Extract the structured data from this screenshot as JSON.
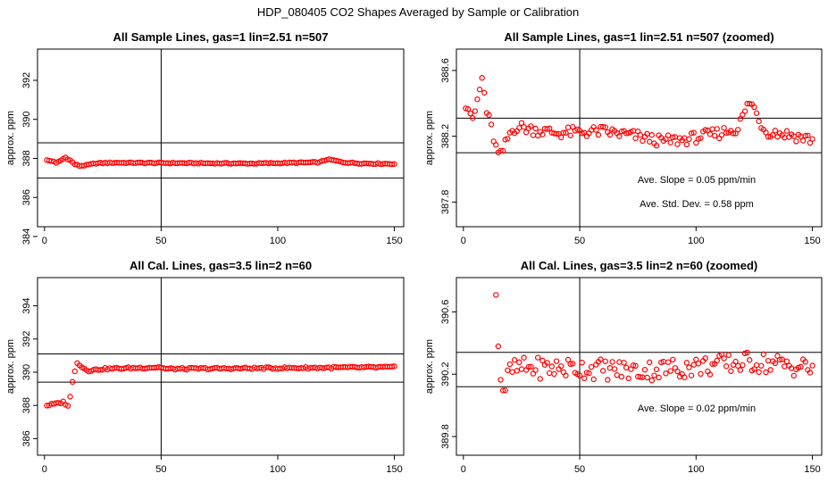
{
  "figure": {
    "title": "HDP_080405  CO2 Shapes Averaged by Sample or Calibration"
  },
  "chart_data": [
    {
      "type": "scatter",
      "title": "All Sample Lines, gas=1 lin=2.51 n=507",
      "xlabel": "",
      "ylabel": "approx. ppm",
      "xlim": [
        -3,
        154
      ],
      "ylim": [
        384.5,
        393.6
      ],
      "xticks": [
        0,
        50,
        100,
        150
      ],
      "yticks": [
        384,
        386,
        388,
        390,
        392
      ],
      "vlines": [
        50
      ],
      "hlines": [
        387.0,
        388.8
      ],
      "marker_color": "#ff0000",
      "x_range": [
        1,
        150
      ],
      "y_knots": [
        [
          1,
          387.9
        ],
        [
          4,
          387.85
        ],
        [
          5,
          387.75
        ],
        [
          7,
          387.9
        ],
        [
          9,
          388.05
        ],
        [
          11,
          387.9
        ],
        [
          13,
          387.7
        ],
        [
          15,
          387.62
        ],
        [
          18,
          387.65
        ],
        [
          22,
          387.75
        ],
        [
          30,
          387.78
        ],
        [
          60,
          387.76
        ],
        [
          90,
          387.74
        ],
        [
          118,
          387.8
        ],
        [
          121,
          387.95
        ],
        [
          124,
          387.9
        ],
        [
          128,
          387.8
        ],
        [
          135,
          387.75
        ],
        [
          150,
          387.72
        ]
      ],
      "annotations": []
    },
    {
      "type": "scatter",
      "title": "All Sample Lines, gas=1 lin=2.51 n=507 (zoomed)",
      "xlabel": "",
      "ylabel": "approx. ppm",
      "xlim": [
        -3,
        154
      ],
      "ylim": [
        387.65,
        388.73
      ],
      "xticks": [
        0,
        50,
        100,
        150
      ],
      "yticks": [
        387.8,
        388.2,
        388.6
      ],
      "vlines": [
        50
      ],
      "hlines": [
        388.1,
        388.31
      ],
      "marker_color": "#ff0000",
      "x_range": [
        1,
        150
      ],
      "y_knots": [
        [
          1,
          388.4
        ],
        [
          3,
          388.35
        ],
        [
          4,
          388.28
        ],
        [
          5,
          388.35
        ],
        [
          6,
          388.42
        ],
        [
          7,
          388.48
        ],
        [
          8,
          388.55
        ],
        [
          9,
          388.46
        ],
        [
          10,
          388.35
        ],
        [
          12,
          388.25
        ],
        [
          14,
          388.13
        ],
        [
          15,
          388.09
        ],
        [
          16,
          388.08
        ],
        [
          18,
          388.15
        ],
        [
          20,
          388.22
        ],
        [
          23,
          388.26
        ],
        [
          30,
          388.24
        ],
        [
          40,
          388.22
        ],
        [
          60,
          388.23
        ],
        [
          75,
          388.2
        ],
        [
          85,
          388.17
        ],
        [
          95,
          388.18
        ],
        [
          110,
          388.22
        ],
        [
          118,
          388.25
        ],
        [
          120,
          388.32
        ],
        [
          122,
          388.38
        ],
        [
          123,
          388.41
        ],
        [
          125,
          388.37
        ],
        [
          127,
          388.3
        ],
        [
          130,
          388.23
        ],
        [
          140,
          388.21
        ],
        [
          150,
          388.18
        ]
      ],
      "annotations": [
        "Ave. Slope =  0.05  ppm/min",
        "Ave. Std. Dev. =  0.58  ppm"
      ]
    },
    {
      "type": "scatter",
      "title": "All Cal. Lines, gas=3.5 lin=2 n=60",
      "xlabel": "",
      "ylabel": "approx. ppm",
      "xlim": [
        -3,
        154
      ],
      "ylim": [
        385.0,
        395.7
      ],
      "xticks": [
        0,
        50,
        100,
        150
      ],
      "yticks": [
        386,
        388,
        390,
        392,
        394
      ],
      "vlines": [
        50
      ],
      "hlines": [
        389.4,
        391.1
      ],
      "marker_color": "#ff0000",
      "x_range": [
        1,
        150
      ],
      "y_knots": [
        [
          1,
          388.0
        ],
        [
          5,
          388.1
        ],
        [
          8,
          388.2
        ],
        [
          10,
          388.0
        ],
        [
          11,
          388.5
        ],
        [
          12,
          389.4
        ],
        [
          13,
          390.1
        ],
        [
          14,
          390.6
        ],
        [
          16,
          390.3
        ],
        [
          19,
          390.1
        ],
        [
          25,
          390.2
        ],
        [
          50,
          390.3
        ],
        [
          52,
          390.2
        ],
        [
          100,
          390.25
        ],
        [
          150,
          390.3
        ]
      ],
      "annotations": []
    },
    {
      "type": "scatter",
      "title": "All Cal. Lines, gas=3.5 lin=2 n=60 (zoomed)",
      "xlabel": "",
      "ylabel": "approx. ppm",
      "xlim": [
        -3,
        154
      ],
      "ylim": [
        389.68,
        390.82
      ],
      "xticks": [
        0,
        50,
        100,
        150
      ],
      "yticks": [
        389.8,
        390.2,
        390.6
      ],
      "vlines": [
        50
      ],
      "hlines": [
        390.12,
        390.34
      ],
      "marker_color": "#ff0000",
      "x_range": [
        14,
        150
      ],
      "y_knots": [
        [
          14,
          390.72
        ],
        [
          15,
          390.4
        ],
        [
          16,
          390.2
        ],
        [
          17,
          390.1
        ],
        [
          18,
          390.12
        ],
        [
          20,
          390.22
        ],
        [
          25,
          390.24
        ],
        [
          50,
          390.24
        ],
        [
          75,
          390.22
        ],
        [
          100,
          390.25
        ],
        [
          125,
          390.28
        ],
        [
          150,
          390.24
        ]
      ],
      "annotations": [
        "Ave. Slope =  0.02  ppm/min"
      ]
    }
  ]
}
